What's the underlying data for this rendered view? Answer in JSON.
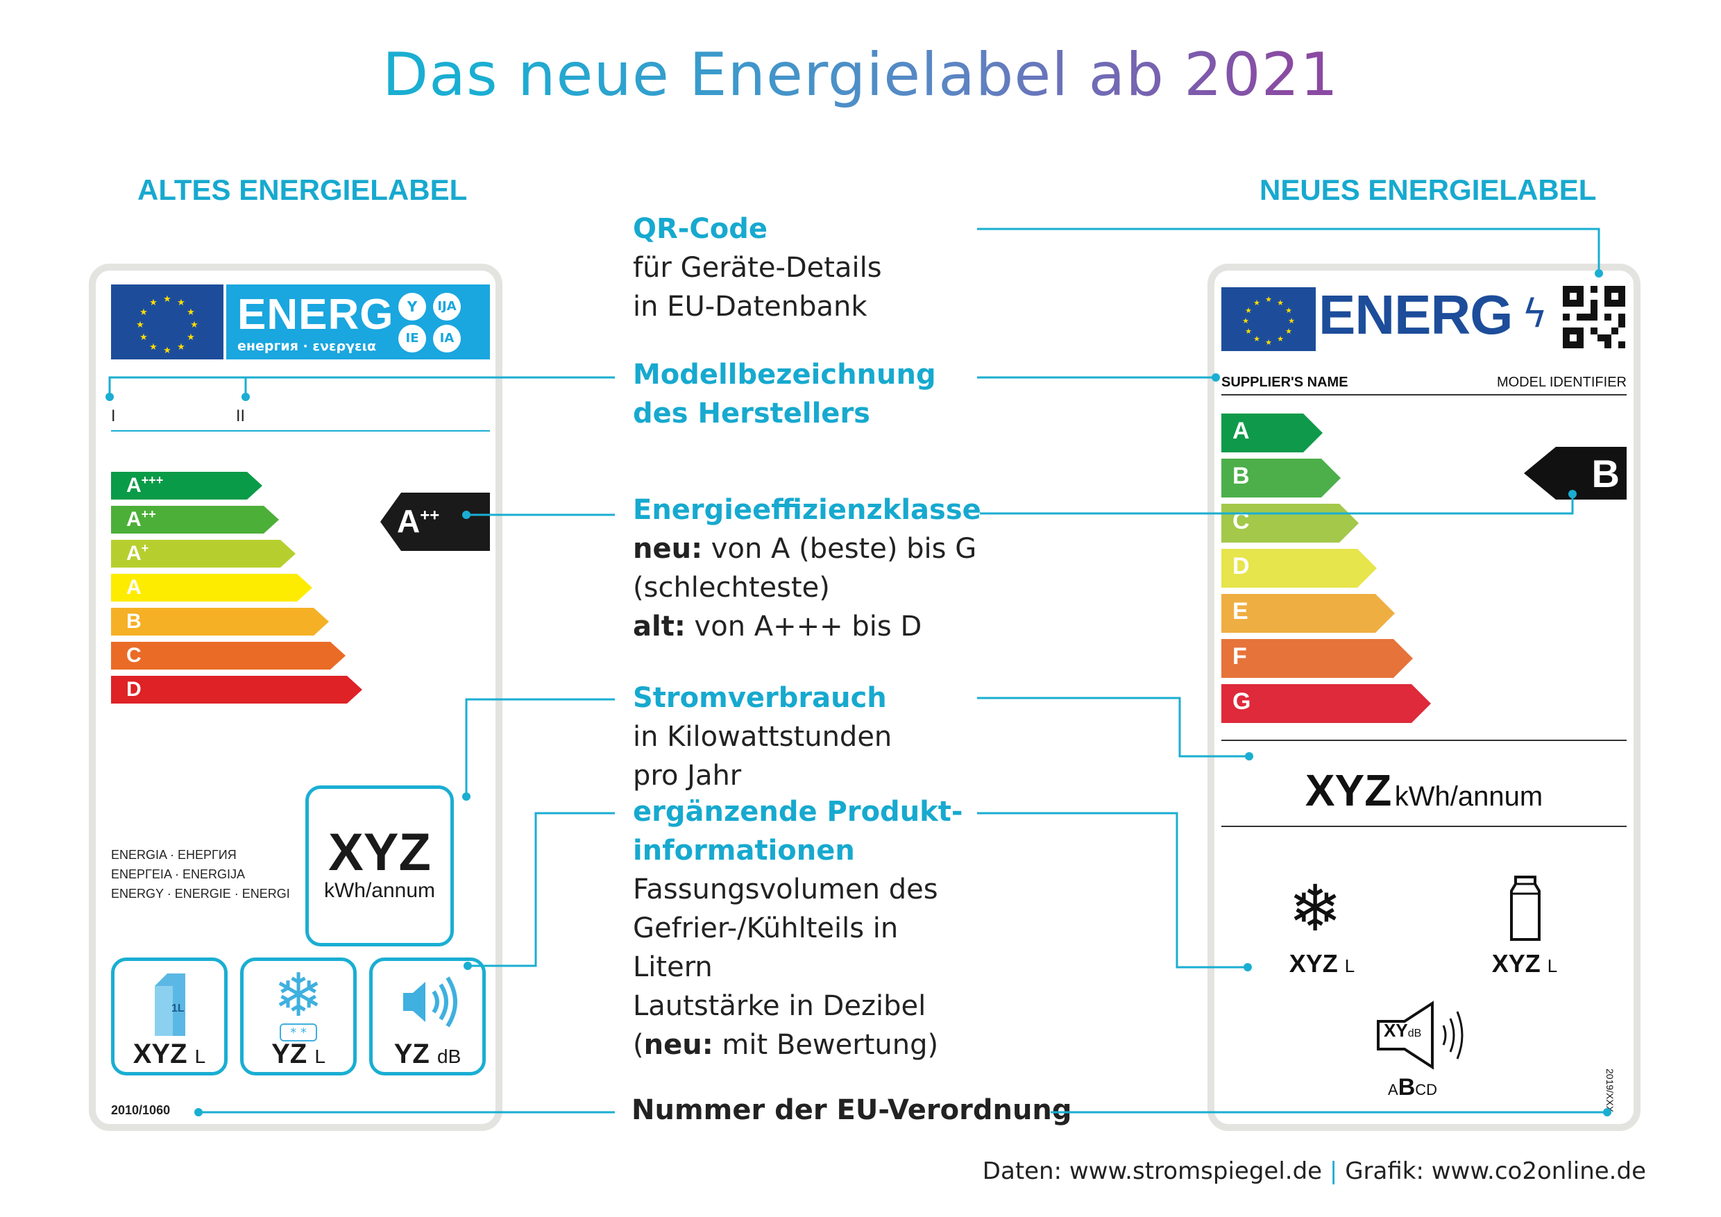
{
  "title": "Das neue Energielabel ab 2021",
  "headings": {
    "old": "ALTES ENERGIELABEL",
    "new": "NEUES ENERGIELABEL"
  },
  "colors": {
    "accent": "#17a9cf",
    "eu_blue": "#1d4d9a",
    "label_dark": "#1a1a1a"
  },
  "annotations": {
    "qr": {
      "head": "QR-Code",
      "lines": [
        "für Geräte-Details",
        "in EU-Datenbank"
      ]
    },
    "model": {
      "head": "Modellbezeichnung",
      "head2": "des Herstellers"
    },
    "efficiency": {
      "head": "Energieeffizienzklasse",
      "neu_bold": "neu:",
      "neu_text": " von A (beste) bis G",
      "neu_text2": "(schlechteste)",
      "alt_bold": "alt:",
      "alt_text": " von A+++ bis D"
    },
    "power": {
      "head": "Stromverbrauch",
      "lines": [
        "in Kilowattstunden",
        "pro Jahr"
      ]
    },
    "extra": {
      "head": "ergänzende Produkt-",
      "head2": "informationen",
      "lines": [
        "Fassungsvolumen des",
        "Gefrier-/Kühlteils in",
        "Litern",
        "Lautstärke in Dezibel"
      ],
      "neu_bold": "neu:",
      "neu_text": " mit Bewertung)",
      "neu_open": "("
    },
    "regulation": {
      "head": "Nummer der EU-Verordnung"
    }
  },
  "old_label": {
    "energ": "ENERG",
    "energ_sub": "енергия · ενεργεια",
    "lang_badges": [
      "Y",
      "IJA",
      "IE",
      "IA"
    ],
    "model_marks": [
      "I",
      "II"
    ],
    "classes": [
      {
        "label": "A",
        "sup": "+++",
        "color": "#0a9b48"
      },
      {
        "label": "A",
        "sup": "++",
        "color": "#4caf38"
      },
      {
        "label": "A",
        "sup": "+",
        "color": "#b7cf2e"
      },
      {
        "label": "A",
        "sup": "",
        "color": "#fdec00"
      },
      {
        "label": "B",
        "sup": "",
        "color": "#f5b025"
      },
      {
        "label": "C",
        "sup": "",
        "color": "#ea6b26"
      },
      {
        "label": "D",
        "sup": "",
        "color": "#de2226"
      }
    ],
    "rating": {
      "label": "A",
      "sup": "++"
    },
    "energy_words": [
      "ENERGIA · ЕНЕРГИЯ",
      "ΕΝΕΡΓΕΙΑ · ENERGIJA",
      "ENERGY · ENERGIE · ENERGI"
    ],
    "consumption": {
      "value": "XYZ",
      "unit": "kWh/annum"
    },
    "icons": [
      {
        "icon": "milk-carton-icon",
        "carton_text": "1L",
        "value": "XYZ",
        "unit": "L"
      },
      {
        "icon": "snowflake-icon",
        "stars": "* *",
        "value": "YZ",
        "unit": "L"
      },
      {
        "icon": "speaker-icon",
        "value": "YZ",
        "unit": "dB"
      }
    ],
    "regulation": "2010/1060"
  },
  "new_label": {
    "energ": "ENERG",
    "supplier": "SUPPLIER'S NAME",
    "model": "MODEL IDENTIFIER",
    "classes": [
      {
        "label": "A",
        "color": "#0e9a4a"
      },
      {
        "label": "B",
        "color": "#4caf4a"
      },
      {
        "label": "C",
        "color": "#a3c84a"
      },
      {
        "label": "D",
        "color": "#e6e54c"
      },
      {
        "label": "E",
        "color": "#efae42"
      },
      {
        "label": "F",
        "color": "#e6733a"
      },
      {
        "label": "G",
        "color": "#de2a3a"
      }
    ],
    "rating": "B",
    "consumption": {
      "value": "XYZ",
      "unit": "kWh/annum"
    },
    "freezer": {
      "icon": "snowflake-icon",
      "value": "XYZ",
      "unit": "L"
    },
    "fridge": {
      "icon": "bottle-icon",
      "value": "XYZ",
      "unit": "L"
    },
    "noise": {
      "icon": "speaker-icon",
      "value": "XY",
      "unit": "dB",
      "classes": [
        "A",
        "B",
        "C",
        "D"
      ]
    },
    "regulation": "2019/XXX"
  },
  "credit": {
    "daten_label": "Daten: ",
    "daten_url": "www.stromspiegel.de",
    "sep": "|",
    "grafik_label": "Grafik: ",
    "grafik_url": "www.co2online.de"
  }
}
